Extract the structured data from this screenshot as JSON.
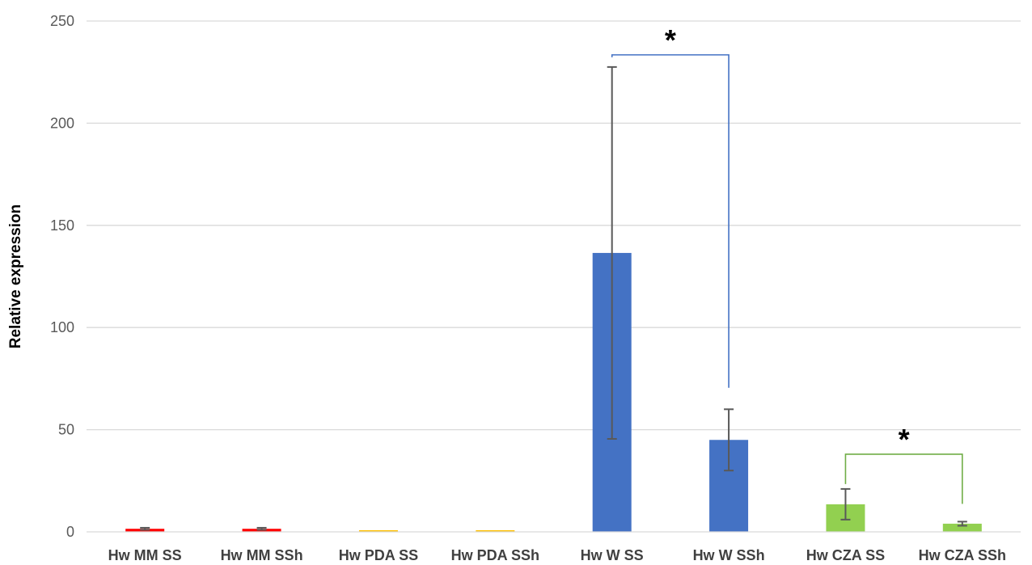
{
  "chart_data": {
    "type": "bar",
    "title": "",
    "xlabel": "",
    "ylabel": "Relative expression",
    "ylim": [
      0,
      250
    ],
    "yticks": [
      0,
      50,
      100,
      150,
      200,
      250
    ],
    "grid": true,
    "legend": "none",
    "categories": [
      "Hw MM SS",
      "Hw MM SSh",
      "Hw PDA SS",
      "Hw PDA SSh",
      "Hw W SS",
      "Hw W SSh",
      "Hw CZA SS",
      "Hw CZA SSh"
    ],
    "values": [
      1.5,
      1.5,
      0.5,
      0.5,
      136.5,
      45,
      13.5,
      4
    ],
    "error": [
      0.5,
      0.5,
      0,
      0,
      91,
      15,
      7.5,
      1
    ],
    "colors": [
      "#ff0000",
      "#ff0000",
      "#ffc000",
      "#ffc000",
      "#4472c4",
      "#4472c4",
      "#92d050",
      "#92d050"
    ],
    "significance": [
      {
        "from": 4,
        "to": 5,
        "label": "*",
        "color": "#4472c4"
      },
      {
        "from": 6,
        "to": 7,
        "label": "*",
        "color": "#70ad47"
      }
    ]
  }
}
